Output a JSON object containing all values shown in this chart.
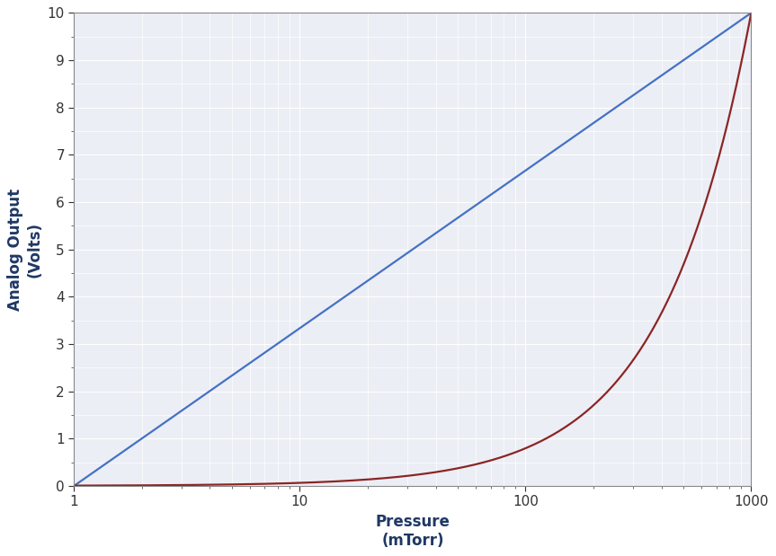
{
  "title": "",
  "xlabel": "Pressure",
  "xlabel2": "(mTorr)",
  "ylabel": "Analog Output",
  "ylabel2": "(Volts)",
  "xmin": 1,
  "xmax": 1000,
  "ymin": 0,
  "ymax": 10,
  "blue_color": "#4472C4",
  "red_color": "#8B2525",
  "background_color": "#E8EBF2",
  "grid_color": "#AAAACC",
  "fig_background": "#E0E3EE",
  "axis_label_color": "#1F3864",
  "tick_label_color": "#404040",
  "xlabel_color": "#1F3864",
  "ylabel_color": "#1F3864",
  "linewidth": 1.6,
  "yticks": [
    0,
    1,
    2,
    3,
    4,
    5,
    6,
    7,
    8,
    9,
    10
  ],
  "xticks_major": [
    1,
    10,
    100,
    1000
  ],
  "red_power": 2.3
}
